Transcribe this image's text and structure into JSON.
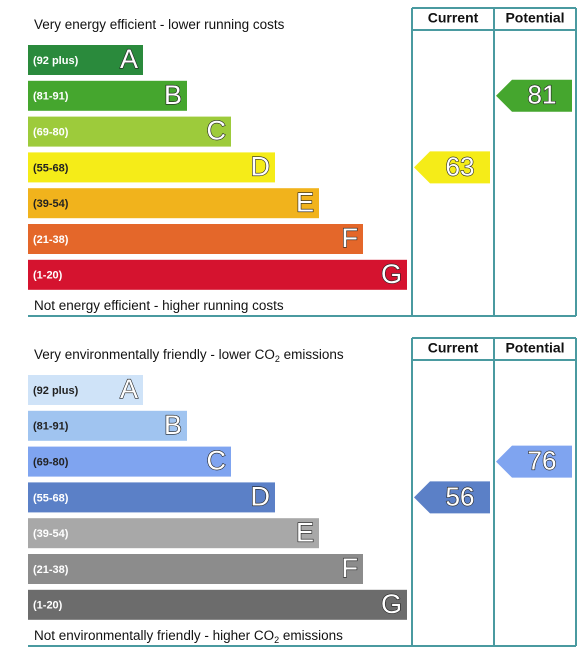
{
  "panels": [
    {
      "header": {
        "current": "Current",
        "potential": "Potential"
      },
      "top_label": [
        "Very energy efficient - lower running costs"
      ],
      "bottom_label": [
        "Not energy efficient - higher running costs"
      ],
      "bands": [
        {
          "range": "(92 plus)",
          "letter": "A",
          "color": "#2a8a3c",
          "text_color": "#ffffff"
        },
        {
          "range": "(81-91)",
          "letter": "B",
          "color": "#45a62e",
          "text_color": "#ffffff"
        },
        {
          "range": "(69-80)",
          "letter": "C",
          "color": "#9dcb3b",
          "text_color": "#ffffff"
        },
        {
          "range": "(55-68)",
          "letter": "D",
          "color": "#f5ec18",
          "text_color": "#222222"
        },
        {
          "range": "(39-54)",
          "letter": "E",
          "color": "#f1b31c",
          "text_color": "#222222"
        },
        {
          "range": "(21-38)",
          "letter": "F",
          "color": "#e4672a",
          "text_color": "#ffffff"
        },
        {
          "range": "(1-20)",
          "letter": "G",
          "color": "#d5132f",
          "text_color": "#ffffff"
        }
      ],
      "current": 63,
      "potential": 81
    },
    {
      "header": {
        "current": "Current",
        "potential": "Potential"
      },
      "top_label": [
        "Very environmentally friendly - lower CO",
        "2",
        " emissions"
      ],
      "bottom_label": [
        "Not environmentally friendly - higher CO",
        "2",
        " emissions"
      ],
      "bands": [
        {
          "range": "(92 plus)",
          "letter": "A",
          "color": "#cfe3f8",
          "text_color": "#222222"
        },
        {
          "range": "(81-91)",
          "letter": "B",
          "color": "#a0c4f0",
          "text_color": "#222222"
        },
        {
          "range": "(69-80)",
          "letter": "C",
          "color": "#7fa4f0",
          "text_color": "#222222"
        },
        {
          "range": "(55-68)",
          "letter": "D",
          "color": "#5b80c7",
          "text_color": "#ffffff"
        },
        {
          "range": "(39-54)",
          "letter": "E",
          "color": "#a8a8a8",
          "text_color": "#ffffff"
        },
        {
          "range": "(21-38)",
          "letter": "F",
          "color": "#8c8c8c",
          "text_color": "#ffffff"
        },
        {
          "range": "(1-20)",
          "letter": "G",
          "color": "#6c6c6c",
          "text_color": "#ffffff"
        }
      ],
      "current": 56,
      "potential": 76
    }
  ]
}
